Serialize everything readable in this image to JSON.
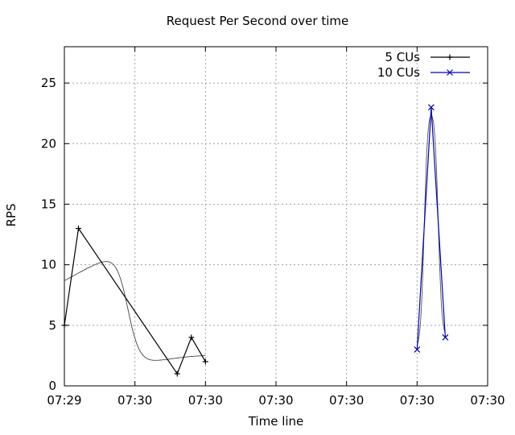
{
  "chart_data": {
    "type": "line",
    "title": "Request Per Second over time",
    "xlabel": "Time line",
    "ylabel": "RPS",
    "x_ticks": [
      "07:29",
      "07:30",
      "07:30",
      "07:30",
      "07:30",
      "07:30",
      "07:30"
    ],
    "ylim": [
      0,
      28
    ],
    "y_ticks": [
      0,
      5,
      10,
      15,
      20,
      25
    ],
    "grid": true,
    "legend_position": "top-right",
    "series": [
      {
        "name": "5 CUs",
        "color": "#000000",
        "marker": "plus",
        "x_tick_positions": [
          0,
          0.2,
          1.6,
          1.8,
          2.0
        ],
        "values": [
          5,
          13,
          1,
          4,
          2
        ],
        "smoothed_curve": true
      },
      {
        "name": "10 CUs",
        "color": "#0000c0",
        "marker": "cross",
        "x_tick_positions": [
          5.0,
          5.2,
          5.4
        ],
        "values": [
          3,
          23,
          4
        ],
        "smoothed_curve": true
      }
    ]
  }
}
